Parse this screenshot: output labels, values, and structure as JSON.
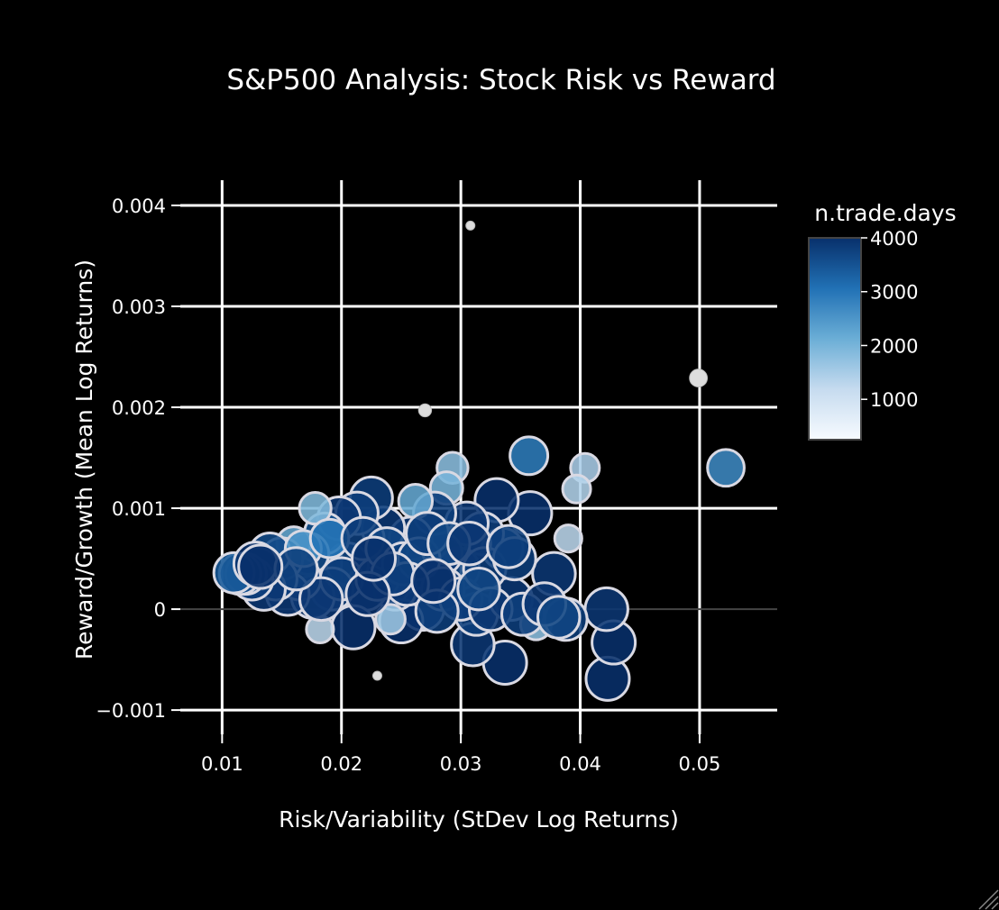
{
  "chart_data": {
    "type": "scatter",
    "title": "S&P500 Analysis: Stock Risk vs Reward",
    "xlabel": "Risk/Variability (StDev Log Returns)",
    "ylabel": "Reward/Growth (Mean Log Returns)",
    "xlim": [
      0.0065,
      0.0565
    ],
    "ylim": [
      -0.00124,
      0.00425
    ],
    "xticks": [
      0.01,
      0.02,
      0.03,
      0.04,
      0.05
    ],
    "xtick_labels": [
      "0.01",
      "0.02",
      "0.03",
      "0.04",
      "0.05"
    ],
    "yticks": [
      -0.001,
      0,
      0.001,
      0.002,
      0.003,
      0.004
    ],
    "ytick_labels": [
      "−0.001",
      "0",
      "0.001",
      "0.002",
      "0.003",
      "0.004"
    ],
    "grid": true,
    "colorbar": {
      "title": "n.trade.days",
      "min": 250,
      "max": 4000,
      "ticks": [
        1000,
        2000,
        3000,
        4000
      ],
      "tick_labels": [
        "1000",
        "2000",
        "3000",
        "4000"
      ],
      "colors": [
        "#f7fbff",
        "#c6dbef",
        "#6baed6",
        "#2171b5",
        "#08306b"
      ]
    },
    "points": [
      {
        "x": 0.0308,
        "y": 0.0038,
        "n": 250
      },
      {
        "x": 0.027,
        "y": 0.00197,
        "n": 300
      },
      {
        "x": 0.0499,
        "y": 0.00229,
        "n": 500
      },
      {
        "x": 0.023,
        "y": -0.00066,
        "n": 250
      },
      {
        "x": 0.0522,
        "y": 0.0014,
        "n": 2700
      },
      {
        "x": 0.0357,
        "y": 0.00152,
        "n": 2900
      },
      {
        "x": 0.0404,
        "y": 0.0014,
        "n": 1500
      },
      {
        "x": 0.0397,
        "y": 0.00119,
        "n": 1400
      },
      {
        "x": 0.039,
        "y": 0.0007,
        "n": 1300
      },
      {
        "x": 0.0293,
        "y": 0.0014,
        "n": 1800
      },
      {
        "x": 0.0288,
        "y": 0.0012,
        "n": 2000
      },
      {
        "x": 0.0423,
        "y": -0.00069,
        "n": 4000
      },
      {
        "x": 0.0428,
        "y": -0.00033,
        "n": 4000
      },
      {
        "x": 0.0422,
        "y": 0.0,
        "n": 3900
      },
      {
        "x": 0.0337,
        "y": -0.00053,
        "n": 4000
      },
      {
        "x": 0.031,
        "y": -0.00035,
        "n": 3900
      },
      {
        "x": 0.0313,
        "y": -5e-05,
        "n": 3800
      },
      {
        "x": 0.0363,
        "y": -0.00015,
        "n": 1800
      },
      {
        "x": 0.0388,
        "y": -0.0001,
        "n": 3800
      },
      {
        "x": 0.0378,
        "y": 0.00035,
        "n": 3900
      },
      {
        "x": 0.0358,
        "y": 0.00095,
        "n": 4000
      },
      {
        "x": 0.033,
        "y": 0.00108,
        "n": 4000
      },
      {
        "x": 0.0342,
        "y": 0.0001,
        "n": 3900
      },
      {
        "x": 0.0335,
        "y": 0.0006,
        "n": 3500
      },
      {
        "x": 0.0318,
        "y": 0.00075,
        "n": 3800
      },
      {
        "x": 0.0305,
        "y": 0.00085,
        "n": 3900
      },
      {
        "x": 0.0298,
        "y": 0.0004,
        "n": 3700
      },
      {
        "x": 0.0283,
        "y": 0.00055,
        "n": 3900
      },
      {
        "x": 0.0278,
        "y": 0.00095,
        "n": 3800
      },
      {
        "x": 0.0275,
        "y": 0.0003,
        "n": 3600
      },
      {
        "x": 0.0268,
        "y": 0.0,
        "n": 3800
      },
      {
        "x": 0.0262,
        "y": 0.00107,
        "n": 2200
      },
      {
        "x": 0.0258,
        "y": 0.0007,
        "n": 3900
      },
      {
        "x": 0.025,
        "y": -0.00012,
        "n": 4000
      },
      {
        "x": 0.0245,
        "y": 0.0002,
        "n": 3800
      },
      {
        "x": 0.0241,
        "y": -0.0001,
        "n": 1600
      },
      {
        "x": 0.0235,
        "y": 0.0008,
        "n": 3900
      },
      {
        "x": 0.0228,
        "y": 0.0005,
        "n": 3700
      },
      {
        "x": 0.0225,
        "y": 0.0011,
        "n": 3800
      },
      {
        "x": 0.022,
        "y": 0.0002,
        "n": 3900
      },
      {
        "x": 0.0213,
        "y": 0.00095,
        "n": 3800
      },
      {
        "x": 0.021,
        "y": -0.00018,
        "n": 4000
      },
      {
        "x": 0.0205,
        "y": 0.00045,
        "n": 3700
      },
      {
        "x": 0.0198,
        "y": 0.0009,
        "n": 3900
      },
      {
        "x": 0.0192,
        "y": 0.0002,
        "n": 3800
      },
      {
        "x": 0.0186,
        "y": 0.00075,
        "n": 3500
      },
      {
        "x": 0.0182,
        "y": -0.0002,
        "n": 1300
      },
      {
        "x": 0.0178,
        "y": 0.001,
        "n": 1900
      },
      {
        "x": 0.0176,
        "y": 0.00012,
        "n": 3900
      },
      {
        "x": 0.0172,
        "y": 0.00055,
        "n": 3600
      },
      {
        "x": 0.0165,
        "y": 0.0003,
        "n": 3800
      },
      {
        "x": 0.016,
        "y": 0.00065,
        "n": 2200
      },
      {
        "x": 0.0155,
        "y": 0.00015,
        "n": 3900
      },
      {
        "x": 0.015,
        "y": 0.0005,
        "n": 3700
      },
      {
        "x": 0.0145,
        "y": 0.0003,
        "n": 3800
      },
      {
        "x": 0.014,
        "y": 0.00055,
        "n": 3600
      },
      {
        "x": 0.0135,
        "y": 0.0002,
        "n": 3900
      },
      {
        "x": 0.013,
        "y": 0.0004,
        "n": 3700
      },
      {
        "x": 0.0125,
        "y": 0.0003,
        "n": 3800
      },
      {
        "x": 0.012,
        "y": 0.00035,
        "n": 3500
      },
      {
        "x": 0.0115,
        "y": 0.00035,
        "n": 3600
      },
      {
        "x": 0.011,
        "y": 0.00036,
        "n": 3400
      },
      {
        "x": 0.0128,
        "y": 0.00045,
        "n": 4000
      },
      {
        "x": 0.0168,
        "y": 0.0006,
        "n": 2600
      },
      {
        "x": 0.019,
        "y": 0.0007,
        "n": 3000
      },
      {
        "x": 0.02,
        "y": 0.0003,
        "n": 3800
      },
      {
        "x": 0.0218,
        "y": 0.0007,
        "n": 3800
      },
      {
        "x": 0.023,
        "y": 0.0003,
        "n": 3900
      },
      {
        "x": 0.0238,
        "y": 0.0006,
        "n": 3700
      },
      {
        "x": 0.0252,
        "y": 0.00045,
        "n": 3800
      },
      {
        "x": 0.0265,
        "y": 0.0005,
        "n": 3700
      },
      {
        "x": 0.0272,
        "y": 0.00075,
        "n": 3800
      },
      {
        "x": 0.0285,
        "y": 0.0002,
        "n": 3900
      },
      {
        "x": 0.029,
        "y": 0.00065,
        "n": 3700
      },
      {
        "x": 0.03,
        "y": 0.0001,
        "n": 3800
      },
      {
        "x": 0.032,
        "y": 0.0004,
        "n": 3800
      },
      {
        "x": 0.0325,
        "y": 0.0,
        "n": 3900
      },
      {
        "x": 0.0345,
        "y": 0.0005,
        "n": 3800
      },
      {
        "x": 0.0352,
        "y": -5e-05,
        "n": 3800
      },
      {
        "x": 0.037,
        "y": 5e-05,
        "n": 3900
      },
      {
        "x": 0.0382,
        "y": -8e-05,
        "n": 3700
      },
      {
        "x": 0.0315,
        "y": 0.0002,
        "n": 3700
      },
      {
        "x": 0.0255,
        "y": 0.00025,
        "n": 3900
      },
      {
        "x": 0.0243,
        "y": 0.00035,
        "n": 3800
      },
      {
        "x": 0.0222,
        "y": 0.00015,
        "n": 4000
      },
      {
        "x": 0.028,
        "y": -2e-05,
        "n": 3800
      },
      {
        "x": 0.0183,
        "y": 0.0001,
        "n": 3900
      },
      {
        "x": 0.0162,
        "y": 0.0004,
        "n": 3800
      },
      {
        "x": 0.0277,
        "y": 0.00028,
        "n": 4000
      },
      {
        "x": 0.0227,
        "y": 0.0005,
        "n": 4000
      },
      {
        "x": 0.0307,
        "y": 0.00065,
        "n": 3900
      },
      {
        "x": 0.034,
        "y": 0.00062,
        "n": 3800
      },
      {
        "x": 0.0132,
        "y": 0.00042,
        "n": 4000
      }
    ]
  }
}
